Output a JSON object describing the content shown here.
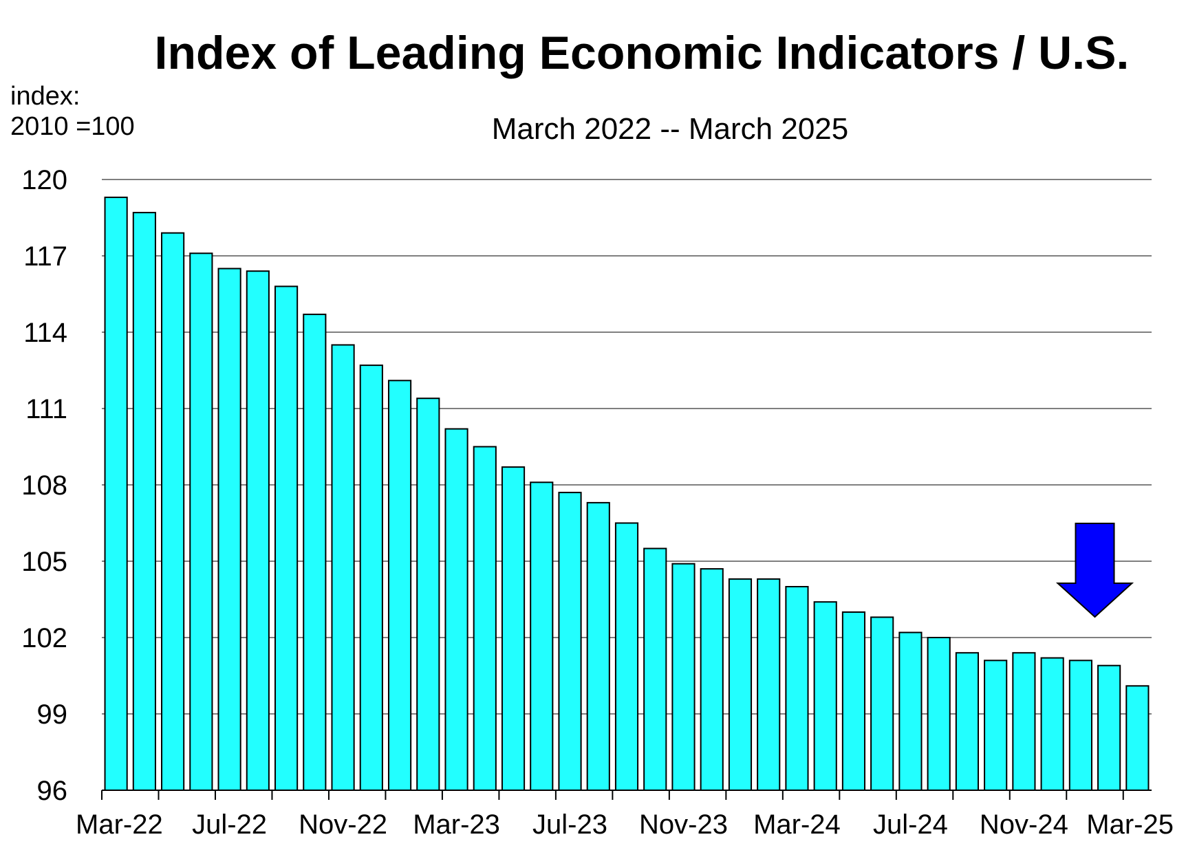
{
  "chart_data": {
    "type": "bar",
    "title": "Index of Leading Economic Indicators / U.S.",
    "subtitle": "March 2022 -- March 2025",
    "y_unit_label": [
      "index:",
      "2010 =100"
    ],
    "ylim": [
      96,
      120
    ],
    "yticks": [
      96,
      99,
      102,
      105,
      108,
      111,
      114,
      117,
      120
    ],
    "grid": true,
    "categories": [
      "Mar-22",
      "Apr-22",
      "May-22",
      "Jun-22",
      "Jul-22",
      "Aug-22",
      "Sep-22",
      "Oct-22",
      "Nov-22",
      "Dec-22",
      "Jan-23",
      "Feb-23",
      "Mar-23",
      "Apr-23",
      "May-23",
      "Jun-23",
      "Jul-23",
      "Aug-23",
      "Sep-23",
      "Oct-23",
      "Nov-23",
      "Dec-23",
      "Jan-24",
      "Feb-24",
      "Mar-24",
      "Apr-24",
      "May-24",
      "Jun-24",
      "Jul-24",
      "Aug-24",
      "Sep-24",
      "Oct-24",
      "Nov-24",
      "Dec-24",
      "Jan-25",
      "Feb-25",
      "Mar-25"
    ],
    "xtick_labels": [
      "Mar-22",
      "Jul-22",
      "Nov-22",
      "Mar-23",
      "Jul-23",
      "Nov-23",
      "Mar-24",
      "Jul-24",
      "Nov-24",
      "Mar-25"
    ],
    "values": [
      119.3,
      118.7,
      117.9,
      117.1,
      116.5,
      116.4,
      115.8,
      114.7,
      113.5,
      112.7,
      112.1,
      111.4,
      110.2,
      109.5,
      108.7,
      108.1,
      107.7,
      107.3,
      106.5,
      105.5,
      104.9,
      104.7,
      104.3,
      104.3,
      104.0,
      103.4,
      103.0,
      102.8,
      102.2,
      102.0,
      101.4,
      101.1,
      101.4,
      101.2,
      101.1,
      100.9,
      100.1
    ],
    "colors": {
      "bar_fill": "#22ffff",
      "bar_stroke": "#000000",
      "grid": "#7f7f7f",
      "arrow": "#0000ff"
    },
    "annotation": {
      "type": "down-arrow",
      "category": "Mar-25"
    }
  }
}
